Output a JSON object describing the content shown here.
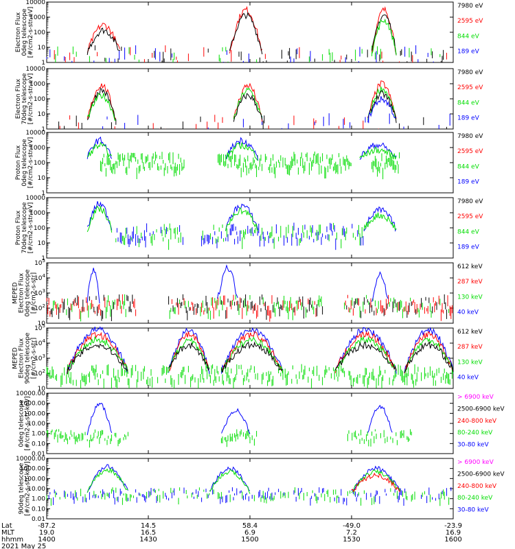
{
  "colors": {
    "black": "#000000",
    "red": "#ff0000",
    "green": "#00dd00",
    "blue": "#0000ff",
    "magenta": "#ff00ff"
  },
  "figure": {
    "date": "2021 May 25"
  },
  "x_axis": {
    "row_labels": [
      "Lat",
      "MLT",
      "hhmm"
    ],
    "ticks": [
      {
        "lat": "-87.2",
        "mlt": "19.0",
        "hhmm": "1400"
      },
      {
        "lat": "14.5",
        "mlt": "16.5",
        "hhmm": "1430"
      },
      {
        "lat": "58.4",
        "mlt": "6.9",
        "hhmm": "1500"
      },
      {
        "lat": "-49.0",
        "mlt": "7.2",
        "hhmm": "1530"
      },
      {
        "lat": "-23.9",
        "mlt": "16.9",
        "hhmm": "1600"
      }
    ]
  },
  "chart_data": [
    {
      "type": "line",
      "ylabel": [
        "Electron Flux",
        "0deg telescope",
        "[#/cm2-s-str-eV]"
      ],
      "yscale": "log",
      "ylim": [
        1,
        10000
      ],
      "yticks": [
        "1",
        "10",
        "100",
        "1000",
        "10000"
      ],
      "series": [
        {
          "name": "7980 eV",
          "color": "black"
        },
        {
          "name": "2595 eV",
          "color": "red"
        },
        {
          "name": "844 eV",
          "color": "green"
        },
        {
          "name": "189 eV",
          "color": "blue"
        }
      ],
      "events": [
        {
          "start": 0.1,
          "end": 0.18,
          "peak": 300,
          "series": [
            1,
            0
          ]
        },
        {
          "start": 0.45,
          "end": 0.53,
          "peak": 3000,
          "series": [
            1,
            0
          ]
        },
        {
          "start": 0.8,
          "end": 0.86,
          "peak": 3000,
          "series": [
            1,
            0,
            2
          ]
        }
      ],
      "background": {
        "level": 5,
        "series": [
          0,
          1,
          2,
          3
        ],
        "density": 0.35,
        "ranges": [
          [
            0.0,
            1.0
          ]
        ]
      }
    },
    {
      "type": "line",
      "ylabel": [
        "Electron Flux",
        "70deg telescope",
        "[#/cm2-s-str-eV]"
      ],
      "yscale": "log",
      "ylim": [
        1,
        10000
      ],
      "yticks": [
        "1",
        "10",
        "100",
        "1000",
        "10000"
      ],
      "series": [
        {
          "name": "7980 eV",
          "color": "black"
        },
        {
          "name": "2595 eV",
          "color": "red"
        },
        {
          "name": "844 eV",
          "color": "green"
        },
        {
          "name": "189 eV",
          "color": "blue"
        }
      ],
      "events": [
        {
          "start": 0.1,
          "end": 0.17,
          "peak": 800,
          "series": [
            1,
            0,
            2
          ]
        },
        {
          "start": 0.46,
          "end": 0.53,
          "peak": 800,
          "series": [
            1,
            2,
            0
          ]
        },
        {
          "start": 0.79,
          "end": 0.86,
          "peak": 1000,
          "series": [
            1,
            2,
            0,
            3
          ]
        }
      ],
      "background": {
        "level": 4,
        "series": [
          0,
          1,
          3
        ],
        "density": 0.15,
        "ranges": [
          [
            0.0,
            1.0
          ]
        ]
      }
    },
    {
      "type": "line",
      "ylabel": [
        "Proton Flux",
        "0deg telescope",
        "[#/cm2-s-str-eV]"
      ],
      "yscale": "log",
      "ylim": [
        1,
        10000
      ],
      "yticks": [
        "1",
        "10",
        "100",
        "1000",
        "10000"
      ],
      "series": [
        {
          "name": "7980 eV",
          "color": "black"
        },
        {
          "name": "2595 eV",
          "color": "red"
        },
        {
          "name": "844 eV",
          "color": "green"
        },
        {
          "name": "189 eV",
          "color": "blue"
        }
      ],
      "events": [
        {
          "start": 0.1,
          "end": 0.16,
          "peak": 3000,
          "series": [
            3,
            2
          ]
        },
        {
          "start": 0.44,
          "end": 0.52,
          "peak": 3000,
          "series": [
            3,
            2
          ]
        },
        {
          "start": 0.77,
          "end": 0.86,
          "peak": 1500,
          "series": [
            3,
            2
          ]
        }
      ],
      "background": {
        "level": 200,
        "series": [
          2
        ],
        "density": 0.9,
        "ranges": [
          [
            0.13,
            0.34
          ],
          [
            0.42,
            0.75
          ],
          [
            0.8,
            0.87
          ]
        ]
      }
    },
    {
      "type": "line",
      "ylabel": [
        "Proton Flux",
        "70deg telescope",
        "[#/cm2-s-str-eV]"
      ],
      "yscale": "log",
      "ylim": [
        1,
        10000
      ],
      "yticks": [
        "1",
        "10",
        "100",
        "1000",
        "10000"
      ],
      "series": [
        {
          "name": "7980 eV",
          "color": "black"
        },
        {
          "name": "2595 eV",
          "color": "red"
        },
        {
          "name": "844 eV",
          "color": "green"
        },
        {
          "name": "189 eV",
          "color": "blue"
        }
      ],
      "events": [
        {
          "start": 0.1,
          "end": 0.16,
          "peak": 4000,
          "series": [
            3,
            2
          ]
        },
        {
          "start": 0.44,
          "end": 0.52,
          "peak": 3000,
          "series": [
            3,
            2
          ]
        },
        {
          "start": 0.78,
          "end": 0.86,
          "peak": 1500,
          "series": [
            3,
            2
          ]
        }
      ],
      "background": {
        "level": 80,
        "series": [
          2,
          3
        ],
        "density": 0.8,
        "ranges": [
          [
            0.17,
            0.34
          ],
          [
            0.38,
            0.78
          ]
        ]
      }
    },
    {
      "type": "line",
      "ylabel": [
        "MEPED",
        "Electron Flux",
        "0deg telescope",
        "[#/cm2-s-str]"
      ],
      "yscale": "log",
      "ylim": [
        10,
        100000
      ],
      "yticks": [
        "10",
        "10^2",
        "10^3",
        "10^4",
        "10^5"
      ],
      "series": [
        {
          "name": "612 keV",
          "color": "black"
        },
        {
          "name": "287 keV",
          "color": "red"
        },
        {
          "name": "130 keV",
          "color": "green"
        },
        {
          "name": "40 keV",
          "color": "blue"
        }
      ],
      "events": [
        {
          "start": 0.1,
          "end": 0.13,
          "peak": 30000,
          "series": [
            3
          ]
        },
        {
          "start": 0.42,
          "end": 0.47,
          "peak": 50000,
          "series": [
            3
          ]
        },
        {
          "start": 0.8,
          "end": 0.84,
          "peak": 20000,
          "series": [
            3
          ]
        }
      ],
      "background": {
        "level": 300,
        "series": [
          0,
          1,
          2
        ],
        "density": 0.95,
        "ranges": [
          [
            0.0,
            0.22
          ],
          [
            0.3,
            0.68
          ],
          [
            0.73,
            1.0
          ]
        ]
      }
    },
    {
      "type": "line",
      "ylabel": [
        "MEPED",
        "Electron Flux",
        "90deg telescope",
        "[#/cm2-s-str]"
      ],
      "yscale": "log",
      "ylim": [
        10,
        100000
      ],
      "yticks": [
        "10",
        "10^2",
        "10^3",
        "10^4",
        "10^5"
      ],
      "series": [
        {
          "name": "612 keV",
          "color": "black"
        },
        {
          "name": "287 keV",
          "color": "red"
        },
        {
          "name": "130 keV",
          "color": "green"
        },
        {
          "name": "40 keV",
          "color": "blue"
        }
      ],
      "events": [
        {
          "start": 0.05,
          "end": 0.2,
          "peak": 80000,
          "series": [
            3,
            1,
            2,
            0
          ]
        },
        {
          "start": 0.3,
          "end": 0.4,
          "peak": 80000,
          "series": [
            3,
            1,
            2,
            0
          ]
        },
        {
          "start": 0.43,
          "end": 0.58,
          "peak": 80000,
          "series": [
            3,
            1,
            2,
            0
          ]
        },
        {
          "start": 0.71,
          "end": 0.86,
          "peak": 80000,
          "series": [
            3,
            1,
            2,
            0
          ]
        },
        {
          "start": 0.88,
          "end": 1.0,
          "peak": 80000,
          "series": [
            3,
            1,
            2,
            0
          ]
        }
      ],
      "background": {
        "level": 150,
        "series": [
          2
        ],
        "density": 0.7,
        "ranges": [
          [
            0.0,
            1.0
          ]
        ]
      }
    },
    {
      "type": "line",
      "ylabel": [
        "0deg telescope",
        "[#/cm2-s-str-keV]"
      ],
      "yscale": "log",
      "ylim": [
        0.01,
        10000
      ],
      "yticks": [
        "0.01",
        "0.10",
        "1.00",
        "10.00",
        "100.00",
        "1000.00",
        "10000.00"
      ],
      "series": [
        {
          "name": "> 6900 keV",
          "color": "magenta"
        },
        {
          "name": "2500-6900 keV",
          "color": "black"
        },
        {
          "name": "240-800 keV",
          "color": "red"
        },
        {
          "name": "80-240 keV",
          "color": "green"
        },
        {
          "name": "30-80 keV",
          "color": "blue"
        }
      ],
      "events": [
        {
          "start": 0.1,
          "end": 0.16,
          "peak": 800,
          "series": [
            4
          ]
        },
        {
          "start": 0.43,
          "end": 0.5,
          "peak": 200,
          "series": [
            4
          ]
        },
        {
          "start": 0.79,
          "end": 0.85,
          "peak": 500,
          "series": [
            4
          ]
        }
      ],
      "background": {
        "level": 1,
        "series": [
          3
        ],
        "density": 0.7,
        "ranges": [
          [
            0.0,
            0.2
          ],
          [
            0.42,
            0.52
          ],
          [
            0.74,
            0.9
          ]
        ]
      }
    },
    {
      "type": "line",
      "ylabel": [
        "90deg telescope",
        "[#/cm2-s-str-keV]"
      ],
      "yscale": "log",
      "ylim": [
        0.01,
        10000
      ],
      "yticks": [
        "0.01",
        "0.10",
        "1.00",
        "10.00",
        "100.00",
        "1000.00",
        "10000.00"
      ],
      "series": [
        {
          "name": "> 6900 keV",
          "color": "magenta"
        },
        {
          "name": "2500-6900 keV",
          "color": "black"
        },
        {
          "name": "240-800 keV",
          "color": "red"
        },
        {
          "name": "80-240 keV",
          "color": "green"
        },
        {
          "name": "30-80 keV",
          "color": "blue"
        }
      ],
      "events": [
        {
          "start": 0.1,
          "end": 0.2,
          "peak": 1500,
          "series": [
            4,
            3
          ]
        },
        {
          "start": 0.4,
          "end": 0.5,
          "peak": 1000,
          "series": [
            4,
            3
          ]
        },
        {
          "start": 0.75,
          "end": 0.87,
          "peak": 1000,
          "series": [
            4,
            3,
            2
          ]
        }
      ],
      "background": {
        "level": 5,
        "series": [
          4,
          3
        ],
        "density": 0.6,
        "ranges": [
          [
            0.0,
            1.0
          ]
        ]
      }
    }
  ]
}
